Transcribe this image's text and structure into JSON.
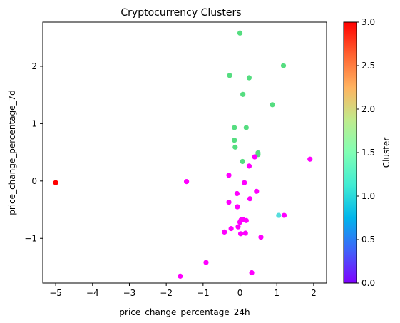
{
  "chart_data": {
    "type": "scatter",
    "title": "Cryptocurrency Clusters",
    "xlabel": "price_change_percentage_24h",
    "ylabel": "price_change_percentage_7d",
    "colorbar_label": "Cluster",
    "xlim": [
      -5.35,
      2.35
    ],
    "ylim": [
      -1.78,
      2.77
    ],
    "xticks": [
      -5,
      -4,
      -3,
      -2,
      -1,
      0,
      1,
      2
    ],
    "xtick_labels": [
      "−5",
      "−4",
      "−3",
      "−2",
      "−1",
      "0",
      "1",
      "2"
    ],
    "yticks": [
      -1,
      0,
      1,
      2
    ],
    "ytick_labels": [
      "−1",
      "0",
      "1",
      "2"
    ],
    "colorbar_range": [
      0.0,
      3.0
    ],
    "colorbar_ticks": [
      0.0,
      0.5,
      1.0,
      1.5,
      2.0,
      2.5,
      3.0
    ],
    "colorbar_tick_labels": [
      "0.0",
      "0.5",
      "1.0",
      "1.5",
      "2.0",
      "2.5",
      "3.0"
    ],
    "colormap": "rainbow",
    "grid": false,
    "points": [
      {
        "x": -5.0,
        "y": -0.03,
        "cluster": 3
      },
      {
        "x": 1.05,
        "y": -0.6,
        "cluster": 1
      },
      {
        "x": 0.0,
        "y": 2.58,
        "cluster": 2
      },
      {
        "x": 1.18,
        "y": 2.01,
        "cluster": 2
      },
      {
        "x": -0.28,
        "y": 1.84,
        "cluster": 2
      },
      {
        "x": 0.25,
        "y": 1.8,
        "cluster": 2
      },
      {
        "x": 0.08,
        "y": 1.51,
        "cluster": 2
      },
      {
        "x": 0.88,
        "y": 1.33,
        "cluster": 2
      },
      {
        "x": -0.15,
        "y": 0.93,
        "cluster": 2
      },
      {
        "x": 0.17,
        "y": 0.93,
        "cluster": 2
      },
      {
        "x": -0.15,
        "y": 0.71,
        "cluster": 2
      },
      {
        "x": -0.13,
        "y": 0.59,
        "cluster": 2
      },
      {
        "x": 0.49,
        "y": 0.49,
        "cluster": 2
      },
      {
        "x": 0.49,
        "y": 0.46,
        "cluster": 2
      },
      {
        "x": 0.07,
        "y": 0.34,
        "cluster": 2
      },
      {
        "x": 0.4,
        "y": 0.42,
        "cluster": 0
      },
      {
        "x": 1.9,
        "y": 0.38,
        "cluster": 0
      },
      {
        "x": 0.25,
        "y": 0.26,
        "cluster": 0
      },
      {
        "x": -0.3,
        "y": 0.1,
        "cluster": 0
      },
      {
        "x": -1.45,
        "y": -0.01,
        "cluster": 0
      },
      {
        "x": 0.12,
        "y": -0.03,
        "cluster": 0
      },
      {
        "x": -0.08,
        "y": -0.22,
        "cluster": 0
      },
      {
        "x": 0.45,
        "y": -0.18,
        "cluster": 0
      },
      {
        "x": 0.27,
        "y": -0.31,
        "cluster": 0
      },
      {
        "x": -0.3,
        "y": -0.37,
        "cluster": 0
      },
      {
        "x": -0.07,
        "y": -0.45,
        "cluster": 0
      },
      {
        "x": 1.2,
        "y": -0.6,
        "cluster": 0
      },
      {
        "x": 0.03,
        "y": -0.68,
        "cluster": 0
      },
      {
        "x": 0.08,
        "y": -0.67,
        "cluster": 0
      },
      {
        "x": 0.17,
        "y": -0.69,
        "cluster": 0
      },
      {
        "x": 0.0,
        "y": -0.72,
        "cluster": 0
      },
      {
        "x": -0.05,
        "y": -0.8,
        "cluster": 0
      },
      {
        "x": -0.24,
        "y": -0.83,
        "cluster": 0
      },
      {
        "x": -0.42,
        "y": -0.89,
        "cluster": 0
      },
      {
        "x": 0.02,
        "y": -0.92,
        "cluster": 0
      },
      {
        "x": 0.15,
        "y": -0.91,
        "cluster": 0
      },
      {
        "x": 0.57,
        "y": -0.98,
        "cluster": 0
      },
      {
        "x": -0.92,
        "y": -1.42,
        "cluster": 0
      },
      {
        "x": 0.32,
        "y": -1.6,
        "cluster": 0
      },
      {
        "x": -1.62,
        "y": -1.66,
        "cluster": 0
      }
    ]
  }
}
